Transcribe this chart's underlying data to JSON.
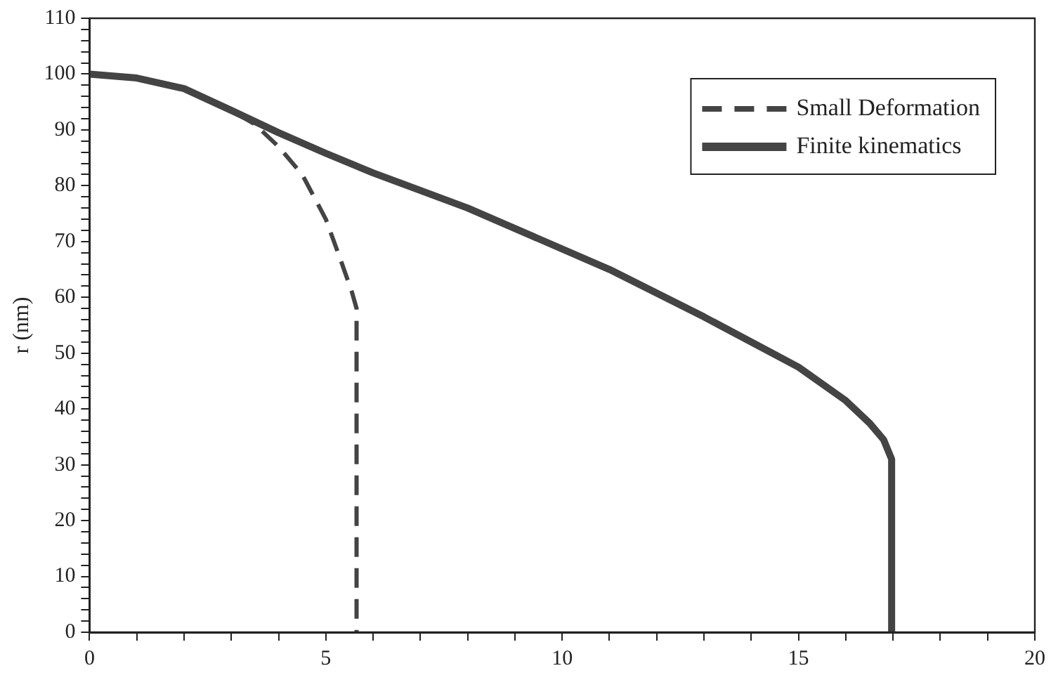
{
  "chart_data": {
    "type": "line",
    "ylabel": "r (nm)",
    "xlim": [
      0,
      20
    ],
    "ylim": [
      0,
      110
    ],
    "xticks": [
      0,
      {
        "value": 1,
        "label": null
      },
      {
        "value": 2,
        "label": null
      },
      {
        "value": 3,
        "label": null
      },
      {
        "value": 4,
        "label": null
      },
      5,
      {
        "value": 6,
        "label": null
      },
      {
        "value": 7,
        "label": null
      },
      {
        "value": 8,
        "label": null
      },
      {
        "value": 9,
        "label": null
      },
      10,
      {
        "value": 11,
        "label": null
      },
      {
        "value": 12,
        "label": null
      },
      {
        "value": 13,
        "label": null
      },
      {
        "value": 14,
        "label": null
      },
      15,
      {
        "value": 16,
        "label": null
      },
      {
        "value": 17,
        "label": null
      },
      {
        "value": 18,
        "label": null
      },
      {
        "value": 19,
        "label": null
      },
      20
    ],
    "yticks": [
      0,
      {
        "value": 2,
        "label": null
      },
      {
        "value": 4,
        "label": null
      },
      {
        "value": 6,
        "label": null
      },
      {
        "value": 8,
        "label": null
      },
      10,
      {
        "value": 12,
        "label": null
      },
      {
        "value": 14,
        "label": null
      },
      {
        "value": 16,
        "label": null
      },
      {
        "value": 18,
        "label": null
      },
      20,
      {
        "value": 22,
        "label": null
      },
      {
        "value": 24,
        "label": null
      },
      {
        "value": 26,
        "label": null
      },
      {
        "value": 28,
        "label": null
      },
      30,
      {
        "value": 32,
        "label": null
      },
      {
        "value": 34,
        "label": null
      },
      {
        "value": 36,
        "label": null
      },
      {
        "value": 38,
        "label": null
      },
      40,
      {
        "value": 42,
        "label": null
      },
      {
        "value": 44,
        "label": null
      },
      {
        "value": 46,
        "label": null
      },
      {
        "value": 48,
        "label": null
      },
      50,
      {
        "value": 52,
        "label": null
      },
      {
        "value": 54,
        "label": null
      },
      {
        "value": 56,
        "label": null
      },
      {
        "value": 58,
        "label": null
      },
      60,
      {
        "value": 62,
        "label": null
      },
      {
        "value": 64,
        "label": null
      },
      {
        "value": 66,
        "label": null
      },
      {
        "value": 68,
        "label": null
      },
      70,
      {
        "value": 72,
        "label": null
      },
      {
        "value": 74,
        "label": null
      },
      {
        "value": 76,
        "label": null
      },
      {
        "value": 78,
        "label": null
      },
      80,
      {
        "value": 82,
        "label": null
      },
      {
        "value": 84,
        "label": null
      },
      {
        "value": 86,
        "label": null
      },
      {
        "value": 88,
        "label": null
      },
      90,
      {
        "value": 92,
        "label": null
      },
      {
        "value": 94,
        "label": null
      },
      {
        "value": 96,
        "label": null
      },
      {
        "value": 98,
        "label": null
      },
      100,
      {
        "value": 102,
        "label": null
      },
      {
        "value": 104,
        "label": null
      },
      {
        "value": 106,
        "label": null
      },
      {
        "value": 108,
        "label": null
      },
      110
    ],
    "grid": false,
    "legend": "top right",
    "marker": "none",
    "series": [
      {
        "name": "Small Deformation",
        "color": "#444444",
        "line_style": "dashed",
        "x": [
          0,
          1,
          2,
          3,
          3.5,
          4,
          4.5,
          5,
          5.3,
          5.55,
          5.65,
          5.65
        ],
        "values": [
          100,
          99.3,
          97.4,
          93.5,
          91,
          87,
          82,
          74,
          67,
          61,
          58,
          0
        ]
      },
      {
        "name": "Finite kinematics",
        "color": "#444444",
        "line_style": "solid",
        "x": [
          0,
          1,
          2,
          3,
          4,
          5,
          6,
          8,
          11,
          13,
          15,
          16,
          16.5,
          16.8,
          16.97,
          16.97
        ],
        "values": [
          100,
          99.3,
          97.4,
          93.5,
          89.5,
          85.8,
          82.3,
          76,
          65,
          56.5,
          47.5,
          41.5,
          37.5,
          34.5,
          31,
          0
        ]
      }
    ]
  }
}
